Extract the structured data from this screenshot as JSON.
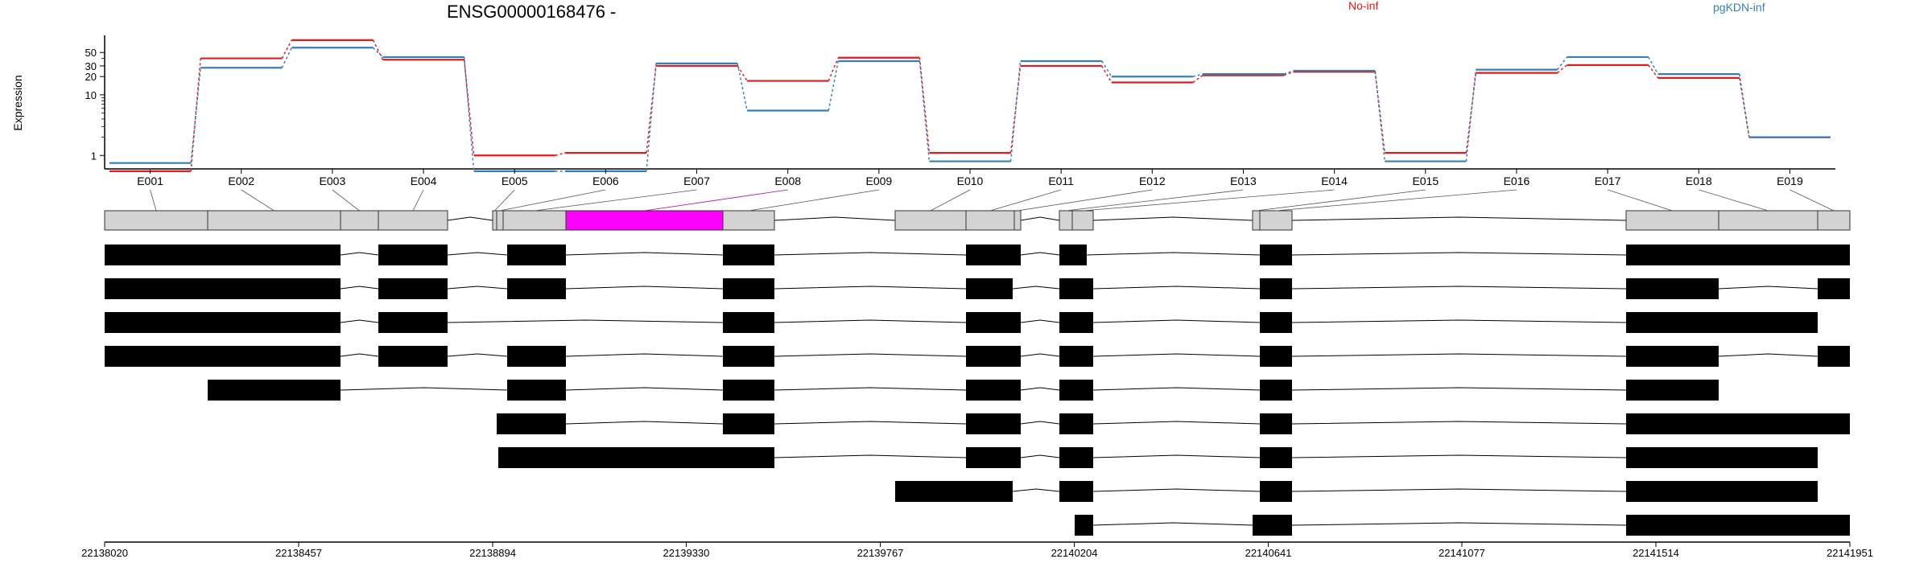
{
  "chart_data": {
    "type": "line",
    "title": "ENSG00000168476 -",
    "ylabel": "Expression",
    "y_scale": "log",
    "ylim": [
      0.6,
      90
    ],
    "y_ticks": [
      1,
      10,
      20,
      30,
      50
    ],
    "categories": [
      "E001",
      "E002",
      "E003",
      "E004",
      "E005",
      "E006",
      "E007",
      "E008",
      "E009",
      "E010",
      "E011",
      "E012",
      "E013",
      "E014",
      "E015",
      "E016",
      "E017",
      "E018",
      "E019"
    ],
    "series": [
      {
        "name": "No-inf",
        "color": "#e41a1c",
        "values": [
          0.55,
          40,
          80,
          38,
          1.0,
          1.1,
          30,
          17,
          41,
          1.1,
          30,
          16,
          21,
          24,
          1.1,
          23,
          31,
          19,
          2.0
        ]
      },
      {
        "name": "pgKDN-inf",
        "color": "#377eb8",
        "values": [
          0.75,
          28,
          60,
          42,
          0.55,
          0.55,
          33,
          5.5,
          36,
          0.8,
          36,
          20,
          22,
          25,
          0.8,
          26,
          42,
          22,
          2.0
        ]
      }
    ],
    "highlight_exon": "E008",
    "highlight_color": "#ff00ff",
    "genomic_axis_ticks": [
      "22138020",
      "22138457",
      "22138894",
      "22139330",
      "22139767",
      "22140204",
      "22140641",
      "22141077",
      "22141514",
      "22141951"
    ]
  }
}
